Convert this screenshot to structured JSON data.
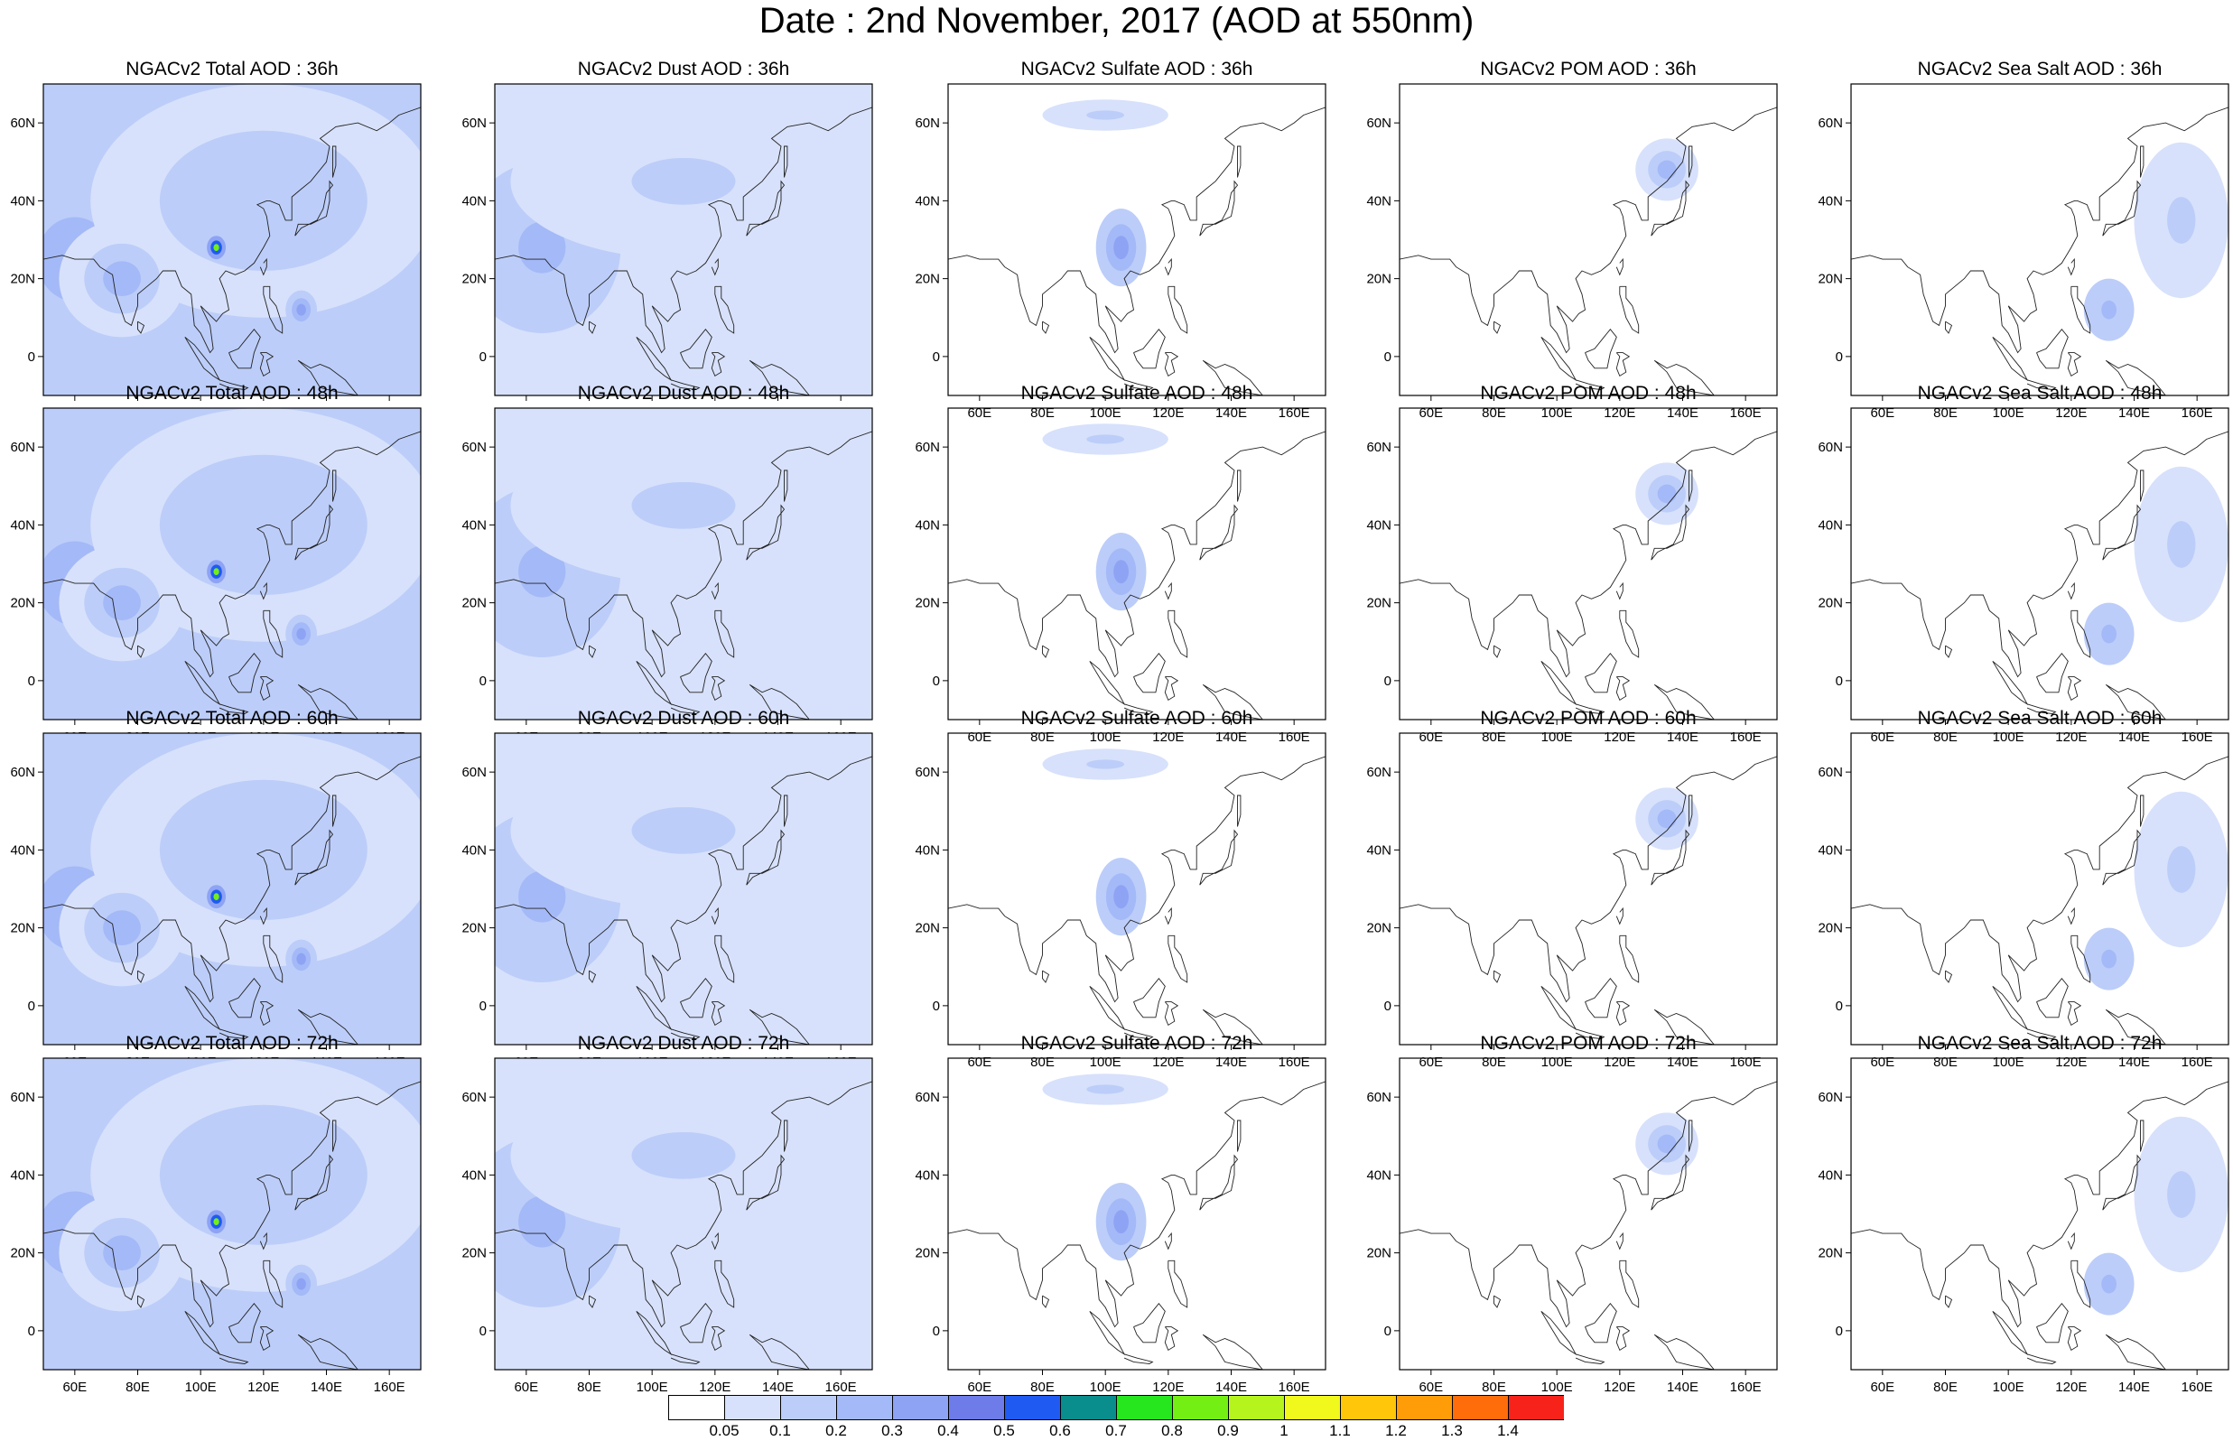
{
  "title": "Date : 2nd November, 2017 (AOD at 550nm)",
  "map": {
    "lon_range": [
      50,
      170
    ],
    "lat_range": [
      -10,
      70
    ],
    "lon_ticks": [
      "60E",
      "80E",
      "100E",
      "120E",
      "140E",
      "160E"
    ],
    "lat_ticks": [
      "60N",
      "40N",
      "20N",
      "0"
    ]
  },
  "panels": [
    {
      "title": "NGACv2 Total AOD : 36h",
      "species": "total",
      "hour": 36
    },
    {
      "title": "NGACv2 Dust AOD : 36h",
      "species": "dust",
      "hour": 36
    },
    {
      "title": "NGACv2 Sulfate AOD : 36h",
      "species": "sulfate",
      "hour": 36
    },
    {
      "title": "NGACv2 POM AOD : 36h",
      "species": "pom",
      "hour": 36
    },
    {
      "title": "NGACv2 Sea Salt AOD : 36h",
      "species": "seasalt",
      "hour": 36
    },
    {
      "title": "NGACv2 Total AOD : 48h",
      "species": "total",
      "hour": 48
    },
    {
      "title": "NGACv2 Dust AOD : 48h",
      "species": "dust",
      "hour": 48
    },
    {
      "title": "NGACv2 Sulfate AOD : 48h",
      "species": "sulfate",
      "hour": 48
    },
    {
      "title": "NGACv2 POM AOD : 48h",
      "species": "pom",
      "hour": 48
    },
    {
      "title": "NGACv2 Sea Salt AOD : 48h",
      "species": "seasalt",
      "hour": 48
    },
    {
      "title": "NGACv2 Total AOD : 60h",
      "species": "total",
      "hour": 60
    },
    {
      "title": "NGACv2 Dust AOD : 60h",
      "species": "dust",
      "hour": 60
    },
    {
      "title": "NGACv2 Sulfate AOD : 60h",
      "species": "sulfate",
      "hour": 60
    },
    {
      "title": "NGACv2 POM AOD : 60h",
      "species": "pom",
      "hour": 60
    },
    {
      "title": "NGACv2 Sea Salt AOD : 60h",
      "species": "seasalt",
      "hour": 60
    },
    {
      "title": "NGACv2 Total AOD : 72h",
      "species": "total",
      "hour": 72
    },
    {
      "title": "NGACv2 Dust AOD : 72h",
      "species": "dust",
      "hour": 72
    },
    {
      "title": "NGACv2 Sulfate AOD : 72h",
      "species": "sulfate",
      "hour": 72
    },
    {
      "title": "NGACv2 POM AOD : 72h",
      "species": "pom",
      "hour": 72
    },
    {
      "title": "NGACv2 Sea Salt  AOD : 72h",
      "species": "seasalt",
      "hour": 72
    }
  ],
  "colorbar": {
    "labels": [
      "0.05",
      "0.1",
      "0.2",
      "0.3",
      "0.4",
      "0.5",
      "0.6",
      "0.7",
      "0.8",
      "0.9",
      "1",
      "1.1",
      "1.2",
      "1.3",
      "1.4"
    ],
    "colors": [
      "#ffffff",
      "#d7e1fb",
      "#bccdf9",
      "#a4b9f7",
      "#8ea3f3",
      "#6d7ce8",
      "#1f5bf2",
      "#0a8d8d",
      "#26e61e",
      "#74ef14",
      "#b5f51d",
      "#f0f91b",
      "#ffc60a",
      "#ff9d08",
      "#ff6d0a",
      "#f7231a"
    ]
  },
  "fields": {
    "total": [
      {
        "lon": 60,
        "lat": 25,
        "rx": 20,
        "ry": 18,
        "v": 0.28
      },
      {
        "lon": 120,
        "lat": 40,
        "rx": 55,
        "ry": 30,
        "v": 0.18
      },
      {
        "lon": 105,
        "lat": 28,
        "rx": 3,
        "ry": 3,
        "v": 0.8
      },
      {
        "lon": 132,
        "lat": 12,
        "rx": 5,
        "ry": 5,
        "v": 0.3
      },
      {
        "lon": 75,
        "lat": 20,
        "rx": 20,
        "ry": 15,
        "v": 0.2
      }
    ],
    "dust": [
      {
        "lon": 65,
        "lat": 28,
        "rx": 25,
        "ry": 22,
        "v": 0.25
      },
      {
        "lon": 110,
        "lat": 45,
        "rx": 55,
        "ry": 20,
        "v": 0.12
      }
    ],
    "sulfate": [
      {
        "lon": 105,
        "lat": 28,
        "rx": 8,
        "ry": 10,
        "v": 0.3
      },
      {
        "lon": 100,
        "lat": 62,
        "rx": 20,
        "ry": 4,
        "v": 0.12
      }
    ],
    "pom": [
      {
        "lon": 135,
        "lat": 48,
        "rx": 10,
        "ry": 8,
        "v": 0.2
      }
    ],
    "seasalt": [
      {
        "lon": 132,
        "lat": 12,
        "rx": 8,
        "ry": 8,
        "v": 0.25
      },
      {
        "lon": 155,
        "lat": 35,
        "rx": 15,
        "ry": 20,
        "v": 0.12
      }
    ]
  }
}
